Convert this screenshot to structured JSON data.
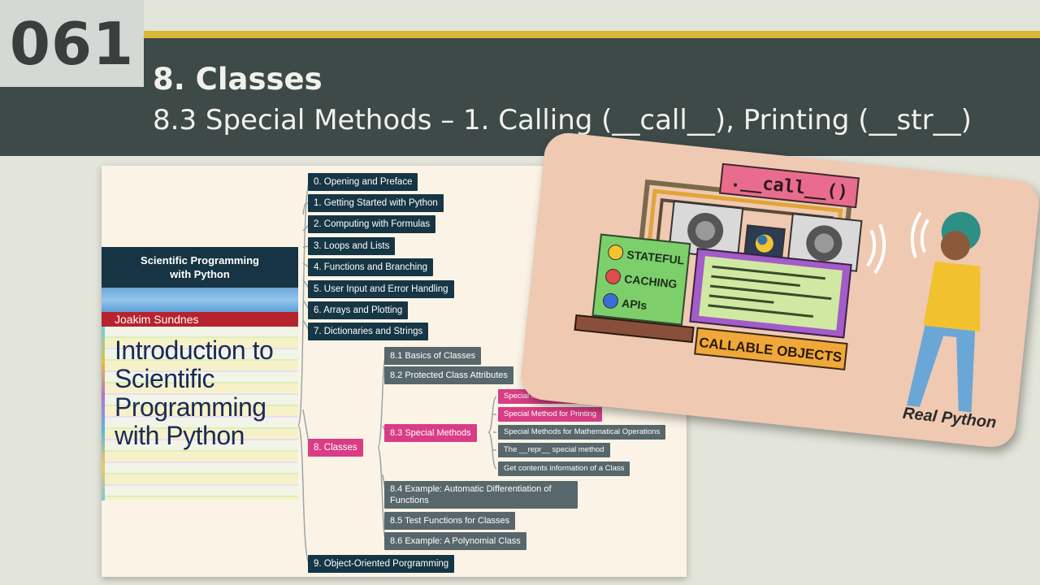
{
  "slide": {
    "number": "061",
    "title": "8. Classes",
    "subtitle": "8.3 Special Methods – 1. Calling (__call__), Printing (__str__)"
  },
  "book": {
    "series_title": "Scientific Programming with Python",
    "author": "Joakim Sundnes",
    "title": "Introduction to Scientific Programming with Python"
  },
  "mindmap": {
    "chapters": [
      "0. Opening and Preface",
      "1. Getting Started with Python",
      "2. Computing with Formulas",
      "3. Loops and Lists",
      "4. Functions and Branching",
      "5. User Input and Error Handling",
      "6. Arrays and Plotting",
      "7. Dictionaries and Strings",
      "8. Classes",
      "9. Object-Oriented Porgramming"
    ],
    "sections": [
      "8.1 Basics of Classes",
      "8.2 Protected Class Attributes",
      "8.3 Special Methods",
      "8.4 Example: Automatic Differentiation of Functions",
      "8.5 Test Functions for Classes",
      "8.6 Example: A Polynomial Class"
    ],
    "topics": [
      "Special Method for Calling",
      "Special Method for Printing",
      "Special Methods for Mathematical Operations",
      "The __repr__ special method",
      "Get contents information of a Class"
    ]
  },
  "illustration": {
    "banner": ".__call__()",
    "features": [
      "STATEFUL",
      "CACHING",
      "APIs"
    ],
    "caption": "CALLABLE OBJECTS",
    "brand": "Real Python"
  }
}
